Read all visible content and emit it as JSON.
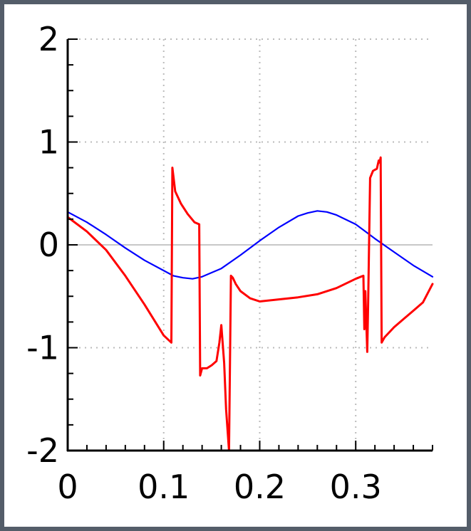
{
  "chart_data": {
    "type": "line",
    "xlim": [
      0,
      0.38
    ],
    "ylim": [
      -2,
      2
    ],
    "xticks": [
      "0",
      "0.1",
      "0.2",
      "0.3"
    ],
    "xtick_values": [
      0,
      0.1,
      0.2,
      0.3
    ],
    "yticks": [
      "-2",
      "-1",
      "0",
      "1",
      "2"
    ],
    "ytick_values": [
      -2,
      -1,
      0,
      1,
      2
    ],
    "grid": true,
    "zero_line": true,
    "colors": {
      "background": "#545d69",
      "plot_area": "#ffffff",
      "grid": "#bbbbbb",
      "zero_line": "#c8c8c8",
      "axis": "#000000"
    },
    "series": [
      {
        "color": "#0000ff",
        "x": [
          0,
          0.02,
          0.04,
          0.06,
          0.08,
          0.1,
          0.11,
          0.12,
          0.13,
          0.14,
          0.16,
          0.18,
          0.2,
          0.22,
          0.24,
          0.25,
          0.26,
          0.27,
          0.28,
          0.3,
          0.32,
          0.34,
          0.36,
          0.38
        ],
        "y": [
          0.32,
          0.22,
          0.1,
          -0.03,
          -0.15,
          -0.25,
          -0.3,
          -0.32,
          -0.33,
          -0.31,
          -0.23,
          -0.1,
          0.04,
          0.17,
          0.28,
          0.31,
          0.33,
          0.32,
          0.29,
          0.2,
          0.06,
          -0.07,
          -0.2,
          -0.31
        ]
      },
      {
        "color": "#ff0000",
        "x": [
          0,
          0.02,
          0.04,
          0.06,
          0.08,
          0.1,
          0.108,
          0.109,
          0.112,
          0.118,
          0.125,
          0.132,
          0.137,
          0.138,
          0.14,
          0.145,
          0.15,
          0.155,
          0.158,
          0.16,
          0.163,
          0.165,
          0.168,
          0.17,
          0.172,
          0.175,
          0.18,
          0.19,
          0.2,
          0.22,
          0.24,
          0.26,
          0.28,
          0.3,
          0.308,
          0.309,
          0.31,
          0.312,
          0.313,
          0.315,
          0.318,
          0.32,
          0.322,
          0.324,
          0.325,
          0.326,
          0.327,
          0.33,
          0.34,
          0.35,
          0.36,
          0.37,
          0.38
        ],
        "y": [
          0.27,
          0.13,
          -0.05,
          -0.3,
          -0.58,
          -0.88,
          -0.95,
          0.75,
          0.52,
          0.4,
          0.3,
          0.22,
          0.2,
          -1.27,
          -1.2,
          -1.2,
          -1.17,
          -1.13,
          -0.95,
          -0.78,
          -1.15,
          -1.6,
          -2.0,
          -0.3,
          -0.32,
          -0.38,
          -0.45,
          -0.52,
          -0.55,
          -0.53,
          -0.51,
          -0.48,
          -0.42,
          -0.33,
          -0.3,
          -0.82,
          -0.45,
          -1.04,
          -0.55,
          0.65,
          0.72,
          0.73,
          0.74,
          0.82,
          0.8,
          0.85,
          -0.95,
          -0.9,
          -0.8,
          -0.72,
          -0.64,
          -0.56,
          -0.38
        ]
      }
    ]
  }
}
